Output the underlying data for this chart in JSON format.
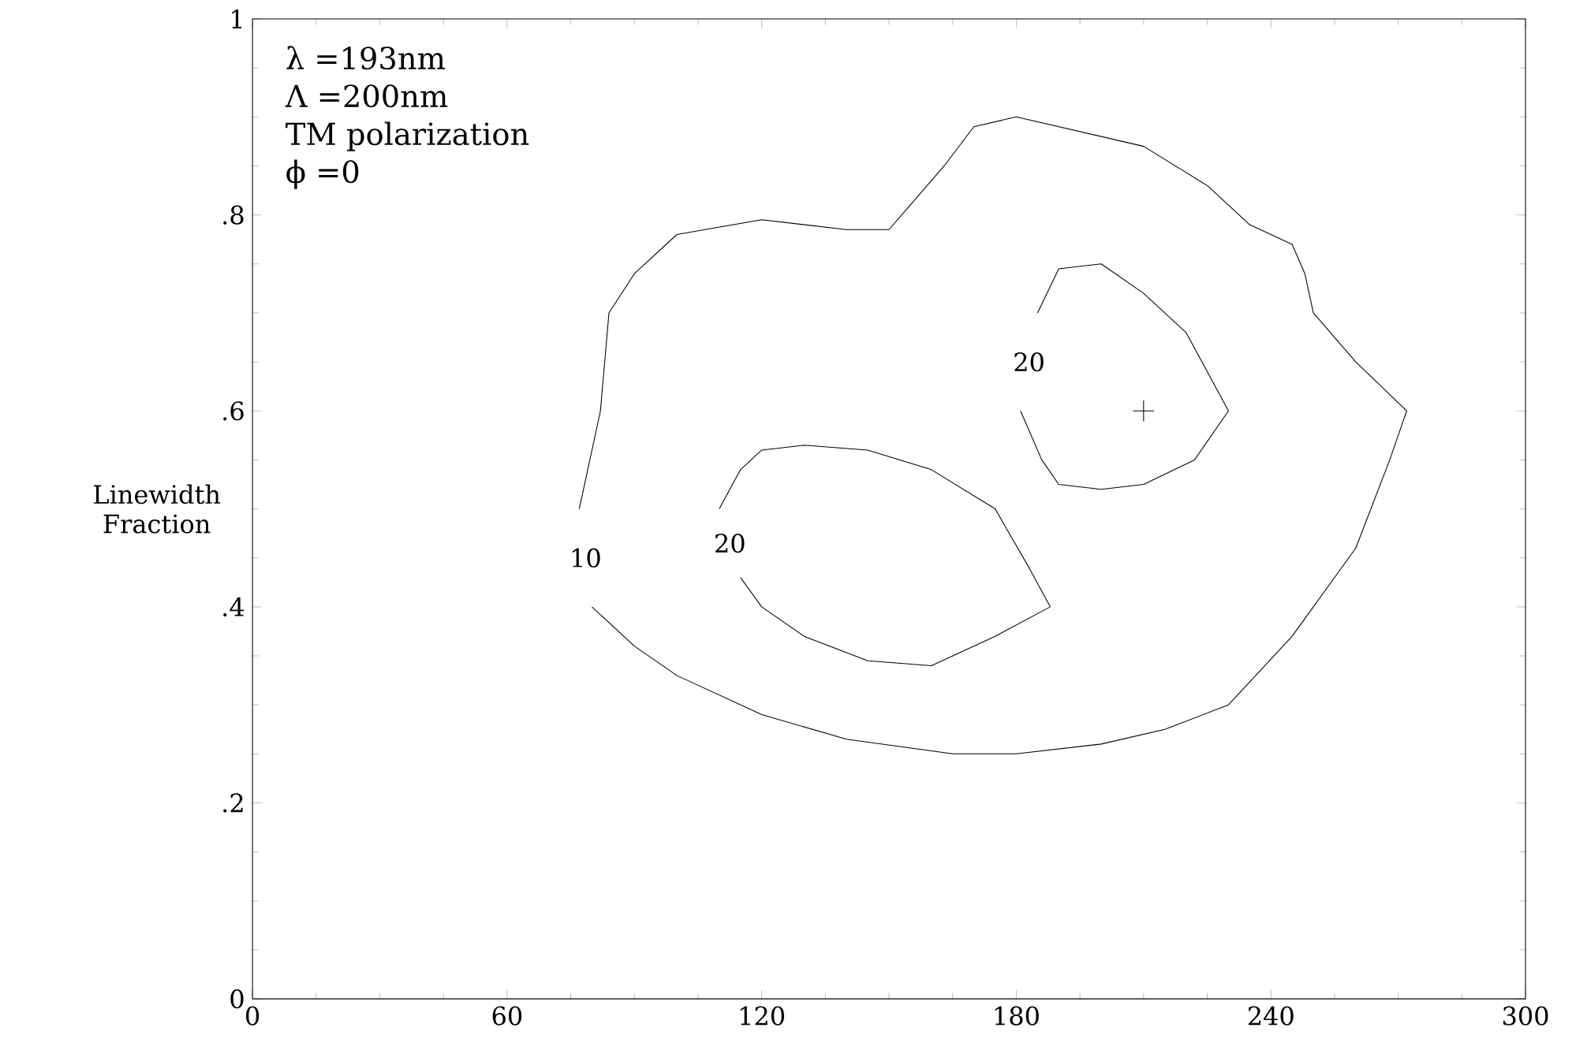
{
  "chart_data": {
    "type": "line",
    "ylabel": "Linewidth Fraction",
    "xlim": [
      0,
      300
    ],
    "ylim": [
      0,
      1
    ],
    "xticks": [
      0,
      60,
      120,
      180,
      240,
      300
    ],
    "yticks": [
      0,
      {
        "value": 0.2,
        "label": ".2"
      },
      {
        "value": 0.4,
        "label": ".4"
      },
      {
        "value": 0.6,
        "label": ".6"
      },
      {
        "value": 0.8,
        "label": ".8"
      },
      1
    ],
    "annotations": [
      "λ =193nm",
      "Λ =200nm",
      "TM polarization",
      "ϕ =0"
    ],
    "series": [
      {
        "name": "10",
        "color": "#000000",
        "x": [
          80,
          90,
          100,
          120,
          140,
          165,
          180,
          200,
          215,
          230,
          245,
          250,
          260,
          268,
          272
        ],
        "values": [
          0.4,
          0.36,
          0.33,
          0.29,
          0.265,
          0.25,
          0.25,
          0.26,
          0.275,
          0.3,
          0.37,
          0.4,
          0.46,
          0.55,
          0.6
        ]
      },
      {
        "color": "#000000",
        "x": [
          77,
          82,
          84,
          90,
          100,
          120,
          140,
          150,
          155,
          163,
          170,
          180,
          195,
          210,
          225,
          235,
          245,
          248,
          250,
          260,
          272
        ],
        "values": [
          0.5,
          0.6,
          0.7,
          0.74,
          0.78,
          0.795,
          0.785,
          0.785,
          0.81,
          0.85,
          0.89,
          0.9,
          0.885,
          0.87,
          0.83,
          0.79,
          0.77,
          0.74,
          0.7,
          0.65,
          0.6
        ]
      },
      {
        "name": "20",
        "color": "#000000",
        "x": [
          115,
          120,
          130,
          145,
          160,
          175,
          188
        ],
        "values": [
          0.43,
          0.4,
          0.37,
          0.345,
          0.34,
          0.37,
          0.4
        ]
      },
      {
        "color": "#000000",
        "x": [
          110,
          115,
          120,
          130,
          145,
          160,
          175,
          183,
          188
        ],
        "values": [
          0.5,
          0.54,
          0.56,
          0.565,
          0.56,
          0.54,
          0.5,
          0.44,
          0.4
        ]
      },
      {
        "name": "20",
        "color": "#000000",
        "x": [
          185,
          190,
          200,
          210,
          220,
          230
        ],
        "values": [
          0.7,
          0.745,
          0.75,
          0.72,
          0.68,
          0.6
        ]
      },
      {
        "color": "#000000",
        "x": [
          181,
          186,
          190,
          200,
          210,
          222,
          230
        ],
        "values": [
          0.6,
          0.55,
          0.525,
          0.52,
          0.525,
          0.55,
          0.6
        ]
      },
      {
        "type": "scatter",
        "marker": "cross",
        "color": "#000000",
        "x": [
          210
        ],
        "values": [
          0.6
        ]
      }
    ]
  }
}
